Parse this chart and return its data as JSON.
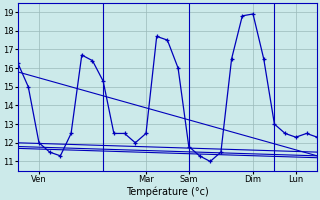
{
  "title": "Température (°c)",
  "bg_color": "#cceaea",
  "grid_color": "#9bbaba",
  "line_color": "#0000bb",
  "ylim": [
    10.5,
    19.5
  ],
  "yticks": [
    11,
    12,
    13,
    14,
    15,
    16,
    17,
    18,
    19
  ],
  "xlim": [
    0,
    168
  ],
  "day_lines": [
    48,
    96,
    144
  ],
  "xtick_positions": [
    12,
    72,
    96,
    132,
    156
  ],
  "xtick_labels": [
    "Ven",
    "Mar",
    "Sam",
    "Dim",
    "Lun"
  ],
  "series1_x": [
    0,
    6,
    12,
    18,
    24,
    30,
    36,
    42,
    48,
    54,
    60,
    66,
    72,
    78,
    84,
    90,
    96,
    102,
    108,
    114,
    120,
    126,
    132,
    138,
    144,
    150,
    156,
    162,
    168
  ],
  "series1_y": [
    16.3,
    15.0,
    12.0,
    11.5,
    11.3,
    12.5,
    16.7,
    16.4,
    15.3,
    12.5,
    12.5,
    12.0,
    12.5,
    17.7,
    17.5,
    16.0,
    11.8,
    11.3,
    11.0,
    11.5,
    16.5,
    18.8,
    18.9,
    16.5,
    13.0,
    12.5,
    12.3,
    12.5,
    12.3
  ],
  "series2_x": [
    0,
    168
  ],
  "series2_y": [
    15.8,
    11.3
  ],
  "series3_x": [
    0,
    168
  ],
  "series3_y": [
    12.0,
    11.5
  ],
  "series4_x": [
    0,
    168
  ],
  "series4_y": [
    11.8,
    11.3
  ],
  "series5_x": [
    0,
    168
  ],
  "series5_y": [
    11.7,
    11.2
  ]
}
